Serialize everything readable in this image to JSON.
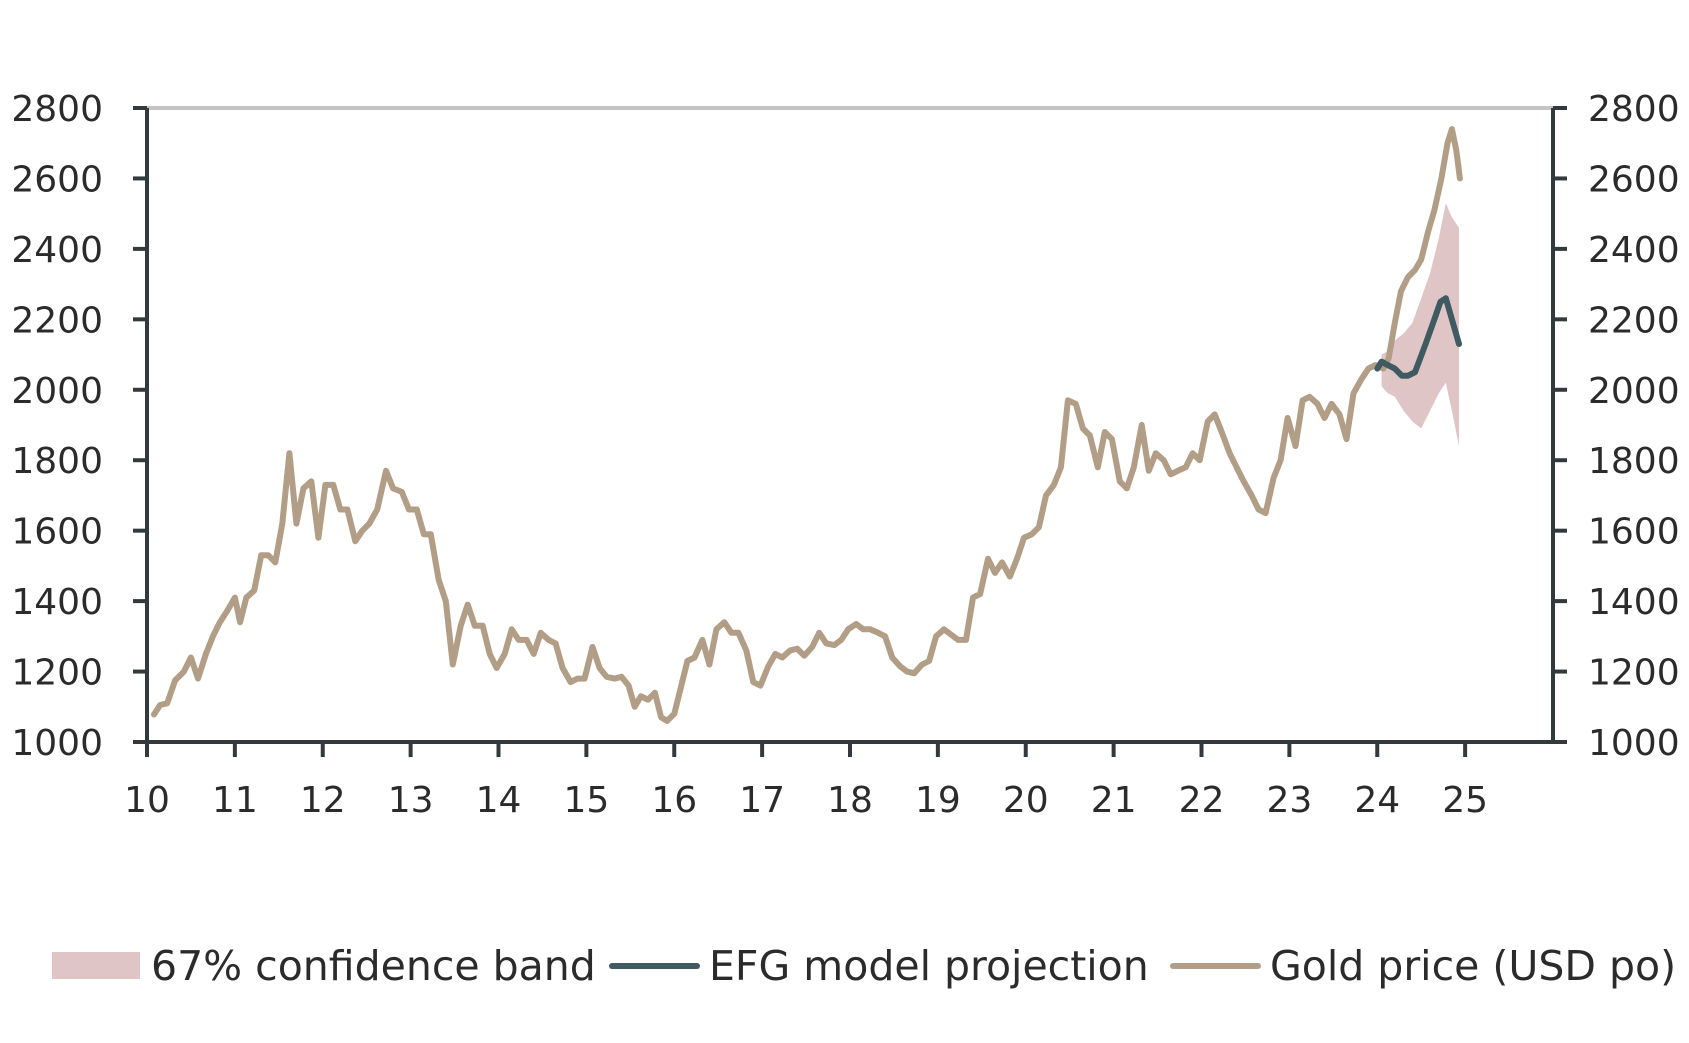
{
  "chart_data": {
    "type": "line",
    "title": "",
    "xlabel": "",
    "ylabel": "",
    "x_unit": "year (two-digit)",
    "xlim": [
      10,
      26
    ],
    "ylim": [
      1000,
      2800
    ],
    "x_ticks": [
      "10",
      "11",
      "12",
      "13",
      "14",
      "15",
      "16",
      "17",
      "18",
      "19",
      "20",
      "21",
      "22",
      "23",
      "24",
      "25"
    ],
    "y_ticks": [
      "1000",
      "1200",
      "1400",
      "1600",
      "1800",
      "2000",
      "2200",
      "2400",
      "2600",
      "2800"
    ],
    "y_ticks_right": [
      "1000",
      "1200",
      "1400",
      "1600",
      "1800",
      "2000",
      "2200",
      "2400",
      "2600",
      "2800"
    ],
    "grid": false,
    "legend_position": "bottom",
    "colors": {
      "gold": "#b29e87",
      "model": "#3f5a60",
      "band": "#e0c5c6",
      "axis": "#333a3d",
      "top_border": "#c4c4c4"
    },
    "legend": [
      {
        "label": "67% confidence band",
        "kind": "band"
      },
      {
        "label": "EFG model projection",
        "kind": "model"
      },
      {
        "label": "Gold price (USD po)",
        "kind": "gold"
      }
    ],
    "series": [
      {
        "name": "Gold price (USD po)",
        "kind": "gold",
        "points": [
          [
            10.08,
            1078
          ],
          [
            10.15,
            1105
          ],
          [
            10.23,
            1110
          ],
          [
            10.32,
            1175
          ],
          [
            10.42,
            1200
          ],
          [
            10.5,
            1240
          ],
          [
            10.58,
            1180
          ],
          [
            10.67,
            1250
          ],
          [
            10.75,
            1300
          ],
          [
            10.83,
            1340
          ],
          [
            10.92,
            1375
          ],
          [
            11.0,
            1410
          ],
          [
            11.06,
            1340
          ],
          [
            11.13,
            1410
          ],
          [
            11.22,
            1430
          ],
          [
            11.3,
            1530
          ],
          [
            11.38,
            1530
          ],
          [
            11.46,
            1510
          ],
          [
            11.54,
            1620
          ],
          [
            11.62,
            1820
          ],
          [
            11.7,
            1620
          ],
          [
            11.78,
            1720
          ],
          [
            11.87,
            1740
          ],
          [
            11.95,
            1580
          ],
          [
            12.03,
            1730
          ],
          [
            12.12,
            1730
          ],
          [
            12.2,
            1660
          ],
          [
            12.28,
            1660
          ],
          [
            12.37,
            1570
          ],
          [
            12.45,
            1600
          ],
          [
            12.53,
            1620
          ],
          [
            12.62,
            1660
          ],
          [
            12.72,
            1770
          ],
          [
            12.8,
            1720
          ],
          [
            12.9,
            1710
          ],
          [
            12.98,
            1660
          ],
          [
            13.07,
            1660
          ],
          [
            13.15,
            1590
          ],
          [
            13.23,
            1590
          ],
          [
            13.32,
            1460
          ],
          [
            13.4,
            1400
          ],
          [
            13.48,
            1220
          ],
          [
            13.57,
            1330
          ],
          [
            13.65,
            1390
          ],
          [
            13.73,
            1330
          ],
          [
            13.82,
            1330
          ],
          [
            13.9,
            1250
          ],
          [
            13.98,
            1210
          ],
          [
            14.07,
            1250
          ],
          [
            14.15,
            1320
          ],
          [
            14.23,
            1290
          ],
          [
            14.32,
            1290
          ],
          [
            14.4,
            1250
          ],
          [
            14.48,
            1310
          ],
          [
            14.57,
            1290
          ],
          [
            14.65,
            1280
          ],
          [
            14.73,
            1210
          ],
          [
            14.82,
            1170
          ],
          [
            14.9,
            1180
          ],
          [
            14.98,
            1180
          ],
          [
            15.07,
            1270
          ],
          [
            15.15,
            1210
          ],
          [
            15.23,
            1185
          ],
          [
            15.32,
            1180
          ],
          [
            15.4,
            1185
          ],
          [
            15.48,
            1160
          ],
          [
            15.55,
            1100
          ],
          [
            15.62,
            1130
          ],
          [
            15.7,
            1120
          ],
          [
            15.78,
            1140
          ],
          [
            15.85,
            1070
          ],
          [
            15.92,
            1060
          ],
          [
            16.0,
            1080
          ],
          [
            16.08,
            1160
          ],
          [
            16.15,
            1230
          ],
          [
            16.23,
            1240
          ],
          [
            16.32,
            1290
          ],
          [
            16.4,
            1220
          ],
          [
            16.48,
            1320
          ],
          [
            16.57,
            1340
          ],
          [
            16.65,
            1310
          ],
          [
            16.73,
            1310
          ],
          [
            16.82,
            1260
          ],
          [
            16.9,
            1170
          ],
          [
            16.98,
            1160
          ],
          [
            17.07,
            1215
          ],
          [
            17.15,
            1250
          ],
          [
            17.23,
            1240
          ],
          [
            17.32,
            1260
          ],
          [
            17.4,
            1265
          ],
          [
            17.48,
            1245
          ],
          [
            17.57,
            1270
          ],
          [
            17.65,
            1310
          ],
          [
            17.73,
            1280
          ],
          [
            17.82,
            1275
          ],
          [
            17.9,
            1290
          ],
          [
            17.98,
            1320
          ],
          [
            18.07,
            1335
          ],
          [
            18.15,
            1320
          ],
          [
            18.23,
            1320
          ],
          [
            18.32,
            1310
          ],
          [
            18.4,
            1300
          ],
          [
            18.48,
            1240
          ],
          [
            18.57,
            1215
          ],
          [
            18.65,
            1200
          ],
          [
            18.73,
            1195
          ],
          [
            18.82,
            1220
          ],
          [
            18.9,
            1230
          ],
          [
            18.98,
            1300
          ],
          [
            19.07,
            1320
          ],
          [
            19.15,
            1305
          ],
          [
            19.23,
            1290
          ],
          [
            19.32,
            1290
          ],
          [
            19.4,
            1410
          ],
          [
            19.48,
            1420
          ],
          [
            19.57,
            1520
          ],
          [
            19.65,
            1480
          ],
          [
            19.73,
            1510
          ],
          [
            19.82,
            1470
          ],
          [
            19.9,
            1520
          ],
          [
            19.98,
            1580
          ],
          [
            20.07,
            1590
          ],
          [
            20.15,
            1610
          ],
          [
            20.23,
            1700
          ],
          [
            20.32,
            1730
          ],
          [
            20.4,
            1780
          ],
          [
            20.48,
            1970
          ],
          [
            20.57,
            1960
          ],
          [
            20.65,
            1890
          ],
          [
            20.73,
            1870
          ],
          [
            20.82,
            1780
          ],
          [
            20.9,
            1880
          ],
          [
            20.98,
            1860
          ],
          [
            21.07,
            1740
          ],
          [
            21.15,
            1720
          ],
          [
            21.23,
            1780
          ],
          [
            21.32,
            1900
          ],
          [
            21.4,
            1770
          ],
          [
            21.48,
            1820
          ],
          [
            21.57,
            1800
          ],
          [
            21.65,
            1760
          ],
          [
            21.73,
            1770
          ],
          [
            21.82,
            1780
          ],
          [
            21.9,
            1820
          ],
          [
            21.98,
            1800
          ],
          [
            22.07,
            1910
          ],
          [
            22.15,
            1930
          ],
          [
            22.23,
            1880
          ],
          [
            22.32,
            1820
          ],
          [
            22.4,
            1780
          ],
          [
            22.48,
            1740
          ],
          [
            22.57,
            1700
          ],
          [
            22.65,
            1660
          ],
          [
            22.73,
            1650
          ],
          [
            22.82,
            1750
          ],
          [
            22.9,
            1800
          ],
          [
            22.98,
            1920
          ],
          [
            23.07,
            1840
          ],
          [
            23.15,
            1970
          ],
          [
            23.23,
            1980
          ],
          [
            23.32,
            1960
          ],
          [
            23.4,
            1920
          ],
          [
            23.48,
            1960
          ],
          [
            23.57,
            1930
          ],
          [
            23.65,
            1860
          ],
          [
            23.73,
            1990
          ],
          [
            23.82,
            2030
          ],
          [
            23.9,
            2060
          ],
          [
            23.98,
            2070
          ],
          [
            24.07,
            2060
          ],
          [
            24.13,
            2090
          ],
          [
            24.2,
            2190
          ],
          [
            24.27,
            2280
          ],
          [
            24.35,
            2320
          ],
          [
            24.43,
            2340
          ],
          [
            24.5,
            2370
          ],
          [
            24.58,
            2450
          ],
          [
            24.65,
            2510
          ],
          [
            24.73,
            2600
          ],
          [
            24.8,
            2700
          ],
          [
            24.85,
            2740
          ],
          [
            24.9,
            2680
          ],
          [
            24.94,
            2600
          ]
        ]
      },
      {
        "name": "EFG model projection",
        "kind": "model",
        "points": [
          [
            24.0,
            2060
          ],
          [
            24.05,
            2080
          ],
          [
            24.12,
            2070
          ],
          [
            24.2,
            2060
          ],
          [
            24.28,
            2040
          ],
          [
            24.35,
            2040
          ],
          [
            24.43,
            2050
          ],
          [
            24.55,
            2130
          ],
          [
            24.65,
            2200
          ],
          [
            24.72,
            2250
          ],
          [
            24.78,
            2260
          ],
          [
            24.85,
            2200
          ],
          [
            24.93,
            2130
          ]
        ]
      }
    ],
    "band": {
      "name": "67% confidence band",
      "x": [
        24.05,
        24.12,
        24.2,
        24.3,
        24.4,
        24.5,
        24.6,
        24.7,
        24.78,
        24.85,
        24.93
      ],
      "upper": [
        2100,
        2110,
        2140,
        2160,
        2190,
        2260,
        2330,
        2430,
        2530,
        2490,
        2460
      ],
      "lower": [
        2010,
        1990,
        1980,
        1940,
        1910,
        1890,
        1940,
        1990,
        2020,
        1940,
        1840
      ]
    }
  }
}
